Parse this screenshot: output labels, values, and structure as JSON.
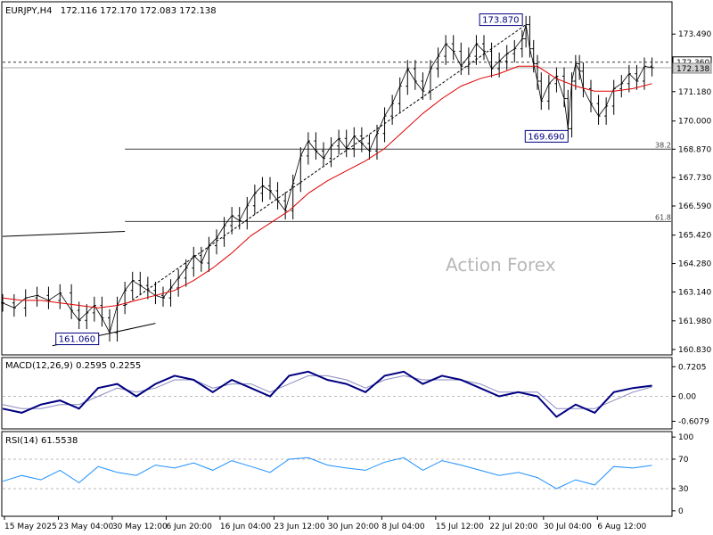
{
  "chart_data": {
    "type": "line",
    "symbol": "EURJPY,H4",
    "ohlc": "172.116 172.170 172.083 172.138",
    "watermark": "Action Forex",
    "x_labels": [
      "15 May 2025",
      "23 May 04:00",
      "30 May 12:00",
      "6 Jun 20:00",
      "16 Jun 04:00",
      "23 Jun 12:00",
      "30 Jun 20:00",
      "8 Jul 04:00",
      "15 Jul 12:00",
      "22 Jul 20:00",
      "30 Jul 04:00",
      "6 Aug 12:00"
    ],
    "price_panel": {
      "y_ticks": [
        173.49,
        172.36,
        171.18,
        170.0,
        168.87,
        167.73,
        166.59,
        165.42,
        164.28,
        163.14,
        161.98,
        160.83
      ],
      "y_tick_labels": [
        "173.490",
        "172.360",
        "171.180",
        "170.000",
        "168.870",
        "167.730",
        "166.590",
        "165.420",
        "164.280",
        "163.140",
        "161.980",
        "160.830"
      ],
      "ylim": [
        160.65,
        174.75
      ],
      "current_price": 172.138,
      "current_price_label": "172.138",
      "reference_price": 172.36,
      "reference_price_label": "172.360",
      "fib_levels": [
        {
          "label": "38.2",
          "value": 168.87
        },
        {
          "label": "61.8",
          "value": 165.97
        }
      ],
      "annotations": [
        {
          "text": "173.870",
          "x": 137,
          "value": 173.87
        },
        {
          "text": "169.690",
          "x": 148,
          "value": 169.69
        },
        {
          "text": "161.060",
          "x": 13,
          "value": 161.06
        }
      ],
      "price_path": [
        [
          0,
          162.7
        ],
        [
          3,
          162.5
        ],
        [
          6,
          162.9
        ],
        [
          9,
          163.0
        ],
        [
          12,
          162.8
        ],
        [
          15,
          163.1
        ],
        [
          18,
          162.4
        ],
        [
          20,
          162.0
        ],
        [
          22,
          162.3
        ],
        [
          24,
          162.6
        ],
        [
          26,
          162.1
        ],
        [
          28,
          161.5
        ],
        [
          30,
          162.6
        ],
        [
          32,
          163.2
        ],
        [
          34,
          163.6
        ],
        [
          36,
          163.4
        ],
        [
          38,
          163.2
        ],
        [
          40,
          163.0
        ],
        [
          42,
          162.9
        ],
        [
          44,
          163.3
        ],
        [
          46,
          163.7
        ],
        [
          48,
          164.1
        ],
        [
          50,
          164.6
        ],
        [
          52,
          164.3
        ],
        [
          54,
          165.0
        ],
        [
          56,
          165.3
        ],
        [
          58,
          165.8
        ],
        [
          60,
          166.2
        ],
        [
          62,
          166.0
        ],
        [
          64,
          166.6
        ],
        [
          66,
          167.1
        ],
        [
          68,
          167.4
        ],
        [
          70,
          167.2
        ],
        [
          72,
          166.8
        ],
        [
          74,
          166.4
        ],
        [
          76,
          167.5
        ],
        [
          78,
          168.6
        ],
        [
          80,
          169.2
        ],
        [
          82,
          168.8
        ],
        [
          84,
          168.5
        ],
        [
          86,
          169.0
        ],
        [
          88,
          169.3
        ],
        [
          90,
          168.9
        ],
        [
          92,
          169.4
        ],
        [
          94,
          169.1
        ],
        [
          96,
          168.8
        ],
        [
          98,
          169.5
        ],
        [
          100,
          170.2
        ],
        [
          102,
          170.7
        ],
        [
          104,
          171.4
        ],
        [
          106,
          172.1
        ],
        [
          108,
          171.6
        ],
        [
          110,
          171.2
        ],
        [
          112,
          172.1
        ],
        [
          114,
          172.6
        ],
        [
          116,
          173.1
        ],
        [
          118,
          172.8
        ],
        [
          120,
          172.2
        ],
        [
          122,
          172.6
        ],
        [
          124,
          173.1
        ],
        [
          126,
          172.8
        ],
        [
          128,
          172.1
        ],
        [
          130,
          172.4
        ],
        [
          132,
          172.7
        ],
        [
          134,
          172.9
        ],
        [
          136,
          173.3
        ],
        [
          137,
          173.87
        ],
        [
          138,
          172.9
        ],
        [
          139,
          172.3
        ],
        [
          140,
          171.6
        ],
        [
          141,
          170.8
        ],
        [
          143,
          171.5
        ],
        [
          145,
          171.8
        ],
        [
          147,
          170.9
        ],
        [
          148,
          169.69
        ],
        [
          149,
          171.6
        ],
        [
          150,
          172.3
        ],
        [
          151,
          172.0
        ],
        [
          152,
          171.3
        ],
        [
          154,
          170.7
        ],
        [
          156,
          170.2
        ],
        [
          158,
          170.6
        ],
        [
          160,
          171.3
        ],
        [
          162,
          171.5
        ],
        [
          164,
          171.9
        ],
        [
          166,
          171.6
        ],
        [
          168,
          172.2
        ],
        [
          170,
          172.14
        ]
      ],
      "ma_series": {
        "name": "",
        "values": [
          [
            0,
            162.9
          ],
          [
            5,
            162.8
          ],
          [
            10,
            162.8
          ],
          [
            15,
            162.7
          ],
          [
            20,
            162.6
          ],
          [
            25,
            162.5
          ],
          [
            30,
            162.6
          ],
          [
            35,
            162.8
          ],
          [
            40,
            163.0
          ],
          [
            45,
            163.2
          ],
          [
            50,
            163.6
          ],
          [
            55,
            164.1
          ],
          [
            60,
            164.7
          ],
          [
            65,
            165.4
          ],
          [
            70,
            165.9
          ],
          [
            75,
            166.4
          ],
          [
            80,
            167.1
          ],
          [
            85,
            167.6
          ],
          [
            90,
            168.0
          ],
          [
            95,
            168.4
          ],
          [
            100,
            168.9
          ],
          [
            105,
            169.6
          ],
          [
            110,
            170.3
          ],
          [
            115,
            170.9
          ],
          [
            120,
            171.4
          ],
          [
            125,
            171.7
          ],
          [
            130,
            171.9
          ],
          [
            135,
            172.2
          ],
          [
            140,
            172.2
          ],
          [
            145,
            171.7
          ],
          [
            150,
            171.4
          ],
          [
            155,
            171.2
          ],
          [
            160,
            171.2
          ],
          [
            165,
            171.3
          ],
          [
            170,
            171.5
          ]
        ]
      },
      "trend_lines": [
        {
          "from": [
            0,
            165.37
          ],
          "to": [
            32,
            165.57
          ]
        },
        {
          "from": [
            13,
            160.98
          ],
          "to": [
            40,
            161.88
          ]
        },
        {
          "from": [
            32,
            162.6
          ],
          "to": [
            137,
            173.87
          ],
          "dashed": true
        }
      ]
    },
    "macd_panel": {
      "label": "MACD(12,26,9) 0.2595 0.2255",
      "y_tick_labels": [
        "0.7205",
        "0.00",
        "-0.6079"
      ],
      "y_ticks": [
        0.7205,
        0.0,
        -0.6079
      ],
      "ylim": [
        -0.75,
        0.9
      ],
      "macd": [
        [
          0,
          -0.3
        ],
        [
          5,
          -0.4
        ],
        [
          10,
          -0.2
        ],
        [
          15,
          -0.1
        ],
        [
          20,
          -0.3
        ],
        [
          25,
          0.2
        ],
        [
          30,
          0.3
        ],
        [
          35,
          0.0
        ],
        [
          40,
          0.3
        ],
        [
          45,
          0.5
        ],
        [
          50,
          0.4
        ],
        [
          55,
          0.1
        ],
        [
          60,
          0.4
        ],
        [
          65,
          0.2
        ],
        [
          70,
          0.0
        ],
        [
          75,
          0.5
        ],
        [
          80,
          0.6
        ],
        [
          85,
          0.4
        ],
        [
          90,
          0.3
        ],
        [
          95,
          0.1
        ],
        [
          100,
          0.5
        ],
        [
          105,
          0.6
        ],
        [
          110,
          0.3
        ],
        [
          115,
          0.5
        ],
        [
          120,
          0.4
        ],
        [
          125,
          0.2
        ],
        [
          130,
          0.0
        ],
        [
          135,
          0.1
        ],
        [
          140,
          0.0
        ],
        [
          145,
          -0.5
        ],
        [
          150,
          -0.2
        ],
        [
          155,
          -0.4
        ],
        [
          160,
          0.1
        ],
        [
          165,
          0.2
        ],
        [
          170,
          0.26
        ]
      ],
      "signal": [
        [
          0,
          -0.2
        ],
        [
          5,
          -0.3
        ],
        [
          10,
          -0.3
        ],
        [
          15,
          -0.2
        ],
        [
          20,
          -0.2
        ],
        [
          25,
          0.0
        ],
        [
          30,
          0.2
        ],
        [
          35,
          0.1
        ],
        [
          40,
          0.2
        ],
        [
          45,
          0.4
        ],
        [
          50,
          0.4
        ],
        [
          55,
          0.2
        ],
        [
          60,
          0.3
        ],
        [
          65,
          0.3
        ],
        [
          70,
          0.1
        ],
        [
          75,
          0.3
        ],
        [
          80,
          0.5
        ],
        [
          85,
          0.5
        ],
        [
          90,
          0.4
        ],
        [
          95,
          0.2
        ],
        [
          100,
          0.4
        ],
        [
          105,
          0.5
        ],
        [
          110,
          0.4
        ],
        [
          115,
          0.4
        ],
        [
          120,
          0.4
        ],
        [
          125,
          0.3
        ],
        [
          130,
          0.1
        ],
        [
          135,
          0.1
        ],
        [
          140,
          0.1
        ],
        [
          145,
          -0.3
        ],
        [
          150,
          -0.3
        ],
        [
          155,
          -0.3
        ],
        [
          160,
          -0.1
        ],
        [
          165,
          0.1
        ],
        [
          170,
          0.23
        ]
      ]
    },
    "rsi_panel": {
      "label": "RSI(14) 61.5538",
      "y_tick_labels": [
        "100",
        "70",
        "30",
        "0"
      ],
      "y_ticks": [
        100,
        70,
        30,
        0
      ],
      "ylim": [
        -5,
        105
      ],
      "rsi": [
        [
          0,
          40
        ],
        [
          5,
          48
        ],
        [
          10,
          42
        ],
        [
          15,
          55
        ],
        [
          20,
          38
        ],
        [
          25,
          60
        ],
        [
          30,
          52
        ],
        [
          35,
          48
        ],
        [
          40,
          62
        ],
        [
          45,
          58
        ],
        [
          50,
          65
        ],
        [
          55,
          55
        ],
        [
          60,
          68
        ],
        [
          65,
          60
        ],
        [
          70,
          52
        ],
        [
          75,
          70
        ],
        [
          80,
          72
        ],
        [
          85,
          62
        ],
        [
          90,
          58
        ],
        [
          95,
          55
        ],
        [
          100,
          66
        ],
        [
          105,
          72
        ],
        [
          110,
          55
        ],
        [
          115,
          68
        ],
        [
          120,
          62
        ],
        [
          125,
          55
        ],
        [
          130,
          48
        ],
        [
          135,
          52
        ],
        [
          140,
          45
        ],
        [
          145,
          30
        ],
        [
          150,
          42
        ],
        [
          155,
          35
        ],
        [
          160,
          60
        ],
        [
          165,
          58
        ],
        [
          170,
          61.55
        ]
      ]
    }
  }
}
